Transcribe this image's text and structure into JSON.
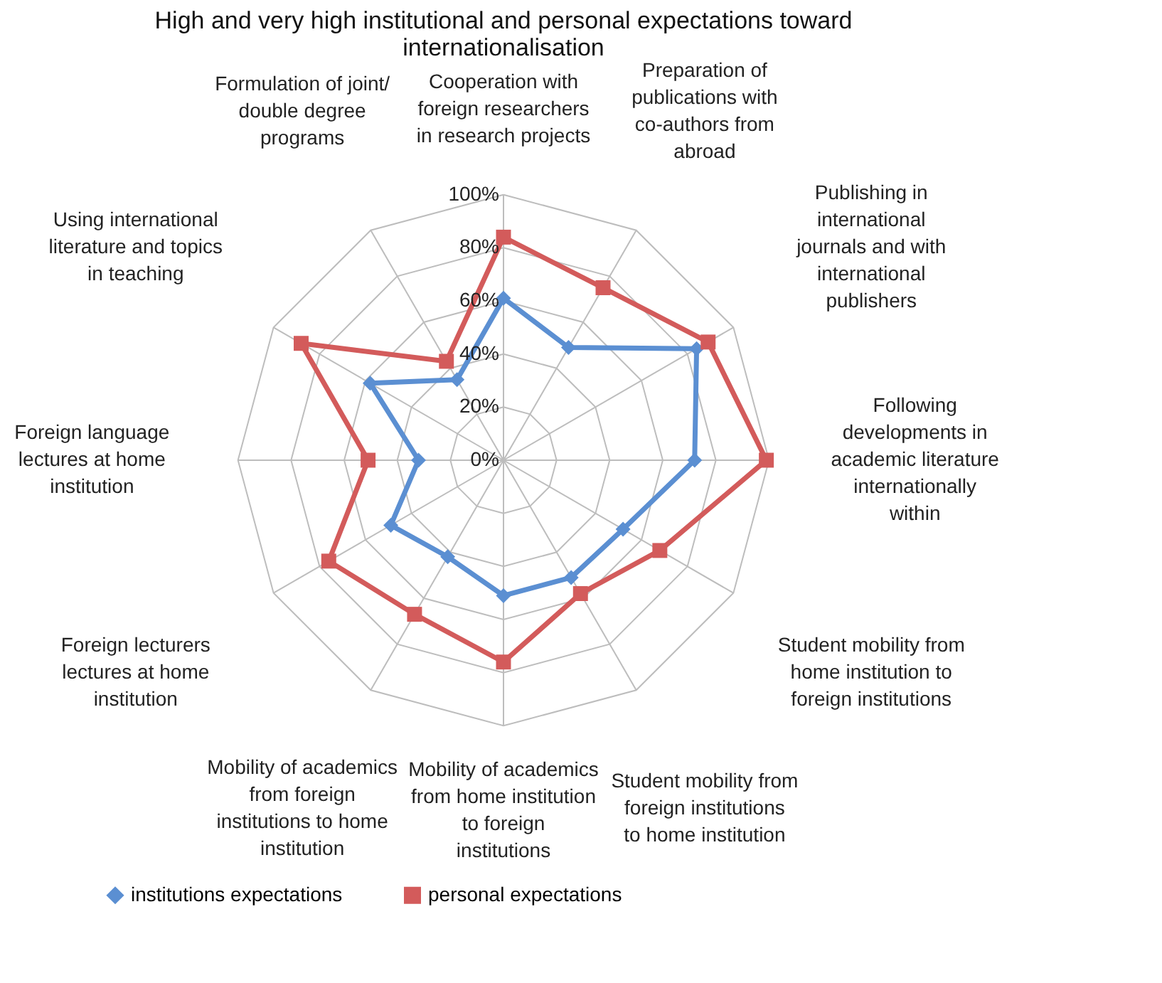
{
  "chart_data": {
    "type": "radar",
    "title": "High and very high institutional and personal expectations toward internationalisation",
    "categories": [
      "Cooperation with foreign researchers in research projects",
      "Preparation of publications with co-authors from abroad",
      "Publishing in international journals and with international publishers",
      "Following developments in academic literature internationally within",
      "Student mobility from home institution to foreign institutions",
      "Student mobility from foreign institutions to home institution",
      "Mobility of academics from home institution to foreign institutions",
      "Mobility of academics from foreign institutions to home institution",
      "Foreign lecturers lectures at home institution",
      "Foreign language lectures at home institution",
      "Using international literature and topics in teaching",
      "Formulation of joint/ double degree programs"
    ],
    "series": [
      {
        "name": "institutions expectations",
        "color": "#5b8fd2",
        "marker": "diamond",
        "values": [
          61,
          49,
          84,
          72,
          52,
          51,
          51,
          42,
          49,
          32,
          58,
          35
        ]
      },
      {
        "name": "personal expectations",
        "color": "#d35b5b",
        "marker": "square",
        "values": [
          84,
          75,
          89,
          99,
          68,
          58,
          76,
          67,
          76,
          51,
          88,
          43
        ]
      }
    ],
    "ylim": [
      0,
      100
    ],
    "yticks": [
      {
        "value": 0,
        "label": "0%"
      },
      {
        "value": 20,
        "label": "20%"
      },
      {
        "value": 40,
        "label": "40%"
      },
      {
        "value": 60,
        "label": "60%"
      },
      {
        "value": 80,
        "label": "80%"
      },
      {
        "value": 100,
        "label": "100%"
      }
    ],
    "grid": true,
    "legend": "bottom"
  }
}
